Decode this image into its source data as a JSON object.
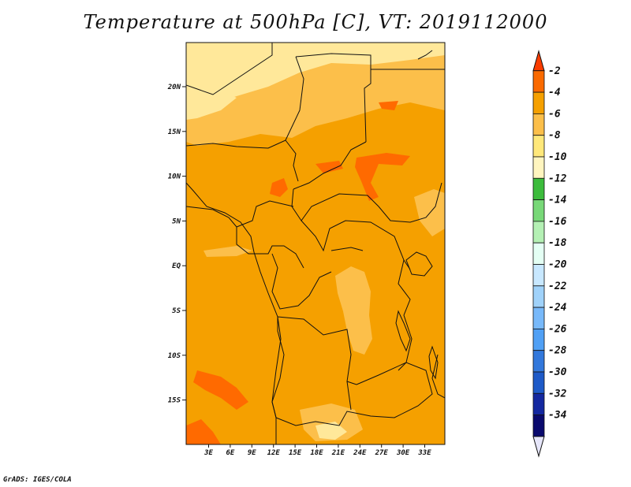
{
  "title": "Temperature at 500hPa [C], VT: 2019112000",
  "footer": "GrADS: IGES/COLA",
  "colors": {
    "base": "#f5a000",
    "warmer": "#ff6a00",
    "cooler": "#fcbf4a",
    "coolest": "#ffe89a",
    "border": "#111111"
  },
  "chart_data": {
    "type": "heatmap",
    "variable": "Temperature at 500hPa [C]",
    "valid_time": "2019112000",
    "x_ticks": [
      "3E",
      "6E",
      "9E",
      "12E",
      "15E",
      "18E",
      "21E",
      "24E",
      "27E",
      "30E",
      "33E"
    ],
    "y_ticks": [
      "20N",
      "15N",
      "10N",
      "5N",
      "EQ",
      "5S",
      "10S",
      "15S"
    ],
    "colorbar": {
      "levels": [
        "-2",
        "-4",
        "-6",
        "-8",
        "-10",
        "-12",
        "-14",
        "-16",
        "-18",
        "-20",
        "-22",
        "-24",
        "-26",
        "-28",
        "-30",
        "-32",
        "-34"
      ],
      "colors": [
        "#fa3c00",
        "#fa6a00",
        "#f5a000",
        "#fcbf4a",
        "#ffe87a",
        "#fff5bf",
        "#3cbc3c",
        "#78d878",
        "#b4f0b4",
        "#e4fff4",
        "#c8e8ff",
        "#a0d2fa",
        "#78b9fa",
        "#50a0f5",
        "#3278dc",
        "#1e5ac8",
        "#1428a0",
        "#0a0a6e",
        "#e6e6fa"
      ]
    }
  }
}
